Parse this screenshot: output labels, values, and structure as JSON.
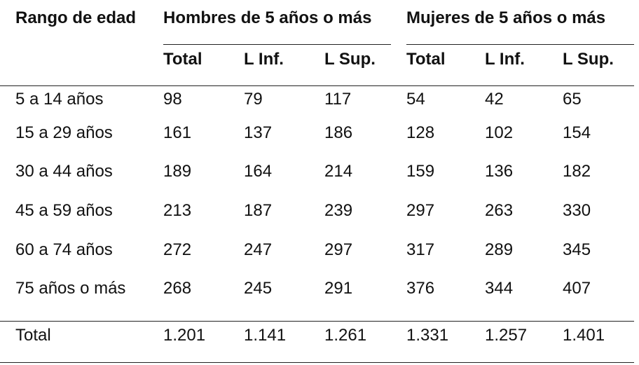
{
  "table": {
    "header": {
      "row_label": "Rango de edad",
      "groups": [
        "Hombres de 5 años o más",
        "Mujeres de 5 años o más"
      ],
      "subheaders": [
        "Total",
        "L Inf.",
        "L Sup.",
        "Total",
        "L Inf.",
        "L Sup."
      ]
    },
    "rows": [
      [
        "5 a 14 años",
        "98",
        "79",
        "117",
        "54",
        "42",
        "65"
      ],
      [
        "15 a 29 años",
        "161",
        "137",
        "186",
        "128",
        "102",
        "154"
      ],
      [
        "30 a 44 años",
        "189",
        "164",
        "214",
        "159",
        "136",
        "182"
      ],
      [
        "45 a 59 años",
        "213",
        "187",
        "239",
        "297",
        "263",
        "330"
      ],
      [
        "60 a 74 años",
        "272",
        "247",
        "297",
        "317",
        "289",
        "345"
      ],
      [
        "75 años o más",
        "268",
        "245",
        "291",
        "376",
        "344",
        "407"
      ]
    ],
    "total": [
      "Total",
      "1.201",
      "1.141",
      "1.261",
      "1.331",
      "1.257",
      "1.401"
    ]
  }
}
